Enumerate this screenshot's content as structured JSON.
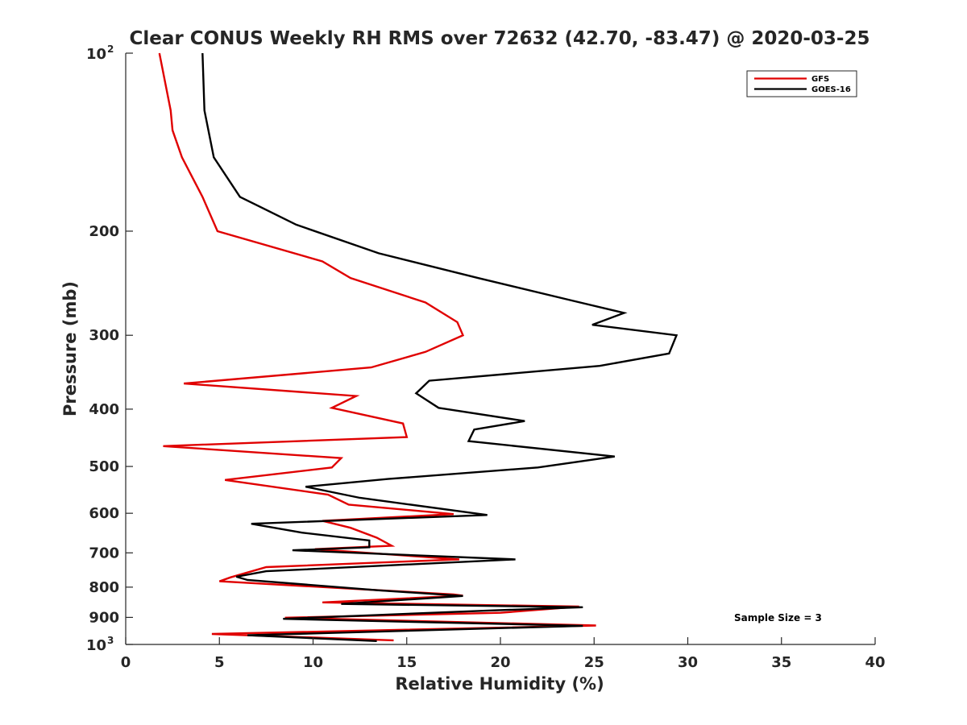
{
  "chart_data": {
    "type": "line",
    "title": "Clear CONUS Weekly RH RMS over 72632 (42.70, -83.47) @ 2020-03-25",
    "xlabel": "Relative Humidity (%)",
    "ylabel": "Pressure (mb)",
    "xlim": [
      0,
      40
    ],
    "ylim": [
      100,
      1000
    ],
    "y_scale": "log",
    "y_reversed": true,
    "x_ticks": [
      0,
      5,
      10,
      15,
      20,
      25,
      30,
      35,
      40
    ],
    "x_tick_labels": [
      "0",
      "5",
      "10",
      "15",
      "20",
      "25",
      "30",
      "35",
      "40"
    ],
    "y_ticks": [
      200,
      300,
      400,
      500,
      600,
      700,
      800,
      900
    ],
    "y_tick_labels": [
      "200",
      "300",
      "400",
      "500",
      "600",
      "700",
      "800",
      "900"
    ],
    "y_end_labels": [
      {
        "value": 100,
        "base": "10",
        "exp": "2"
      },
      {
        "value": 1000,
        "base": "10",
        "exp": "3"
      }
    ],
    "grid": false,
    "legend_position": "top-right",
    "annotation": "Sample Size = 3",
    "series": [
      {
        "name": "GFS",
        "color": "#e00000",
        "points": [
          [
            1.8,
            100
          ],
          [
            2.4,
            125
          ],
          [
            2.5,
            135
          ],
          [
            3.0,
            150
          ],
          [
            4.1,
            175
          ],
          [
            4.9,
            200
          ],
          [
            10.5,
            225
          ],
          [
            12.0,
            240
          ],
          [
            16.0,
            264
          ],
          [
            17.7,
            285
          ],
          [
            18.0,
            300
          ],
          [
            16.0,
            320
          ],
          [
            13.1,
            340
          ],
          [
            3.1,
            362
          ],
          [
            12.3,
            380
          ],
          [
            11.0,
            398
          ],
          [
            14.8,
            423
          ],
          [
            15.0,
            446
          ],
          [
            2.0,
            462
          ],
          [
            11.5,
            484
          ],
          [
            11.0,
            502
          ],
          [
            5.3,
            527
          ],
          [
            10.8,
            558
          ],
          [
            11.9,
            580
          ],
          [
            17.5,
            602
          ],
          [
            10.5,
            618
          ],
          [
            12.0,
            635
          ],
          [
            13.4,
            660
          ],
          [
            14.2,
            681
          ],
          [
            10.1,
            690
          ],
          [
            17.8,
            718
          ],
          [
            7.5,
            740
          ],
          [
            5.6,
            770
          ],
          [
            5.0,
            782
          ],
          [
            17.5,
            823
          ],
          [
            18.0,
            827
          ],
          [
            10.5,
            849
          ],
          [
            24.2,
            863
          ],
          [
            20.0,
            884
          ],
          [
            8.5,
            901
          ],
          [
            25.1,
            929
          ],
          [
            4.6,
            960
          ],
          [
            14.3,
            984
          ]
        ]
      },
      {
        "name": "GOES-16",
        "color": "#000000",
        "points": [
          [
            4.1,
            100
          ],
          [
            4.2,
            125
          ],
          [
            4.7,
            150
          ],
          [
            6.1,
            175
          ],
          [
            9.1,
            195
          ],
          [
            13.5,
            218
          ],
          [
            18.8,
            240
          ],
          [
            23.8,
            262
          ],
          [
            26.6,
            275
          ],
          [
            24.9,
            288
          ],
          [
            29.4,
            300
          ],
          [
            29.0,
            322
          ],
          [
            25.3,
            338
          ],
          [
            16.2,
            358
          ],
          [
            15.5,
            376
          ],
          [
            16.7,
            398
          ],
          [
            21.3,
            419
          ],
          [
            18.6,
            433
          ],
          [
            18.3,
            453
          ],
          [
            26.1,
            481
          ],
          [
            22.0,
            502
          ],
          [
            14.0,
            525
          ],
          [
            9.6,
            541
          ],
          [
            12.5,
            565
          ],
          [
            19.3,
            604
          ],
          [
            6.7,
            625
          ],
          [
            9.4,
            647
          ],
          [
            13.0,
            667
          ],
          [
            13.0,
            685
          ],
          [
            8.9,
            693
          ],
          [
            20.8,
            718
          ],
          [
            7.5,
            752
          ],
          [
            5.9,
            768
          ],
          [
            6.5,
            778
          ],
          [
            13.5,
            810
          ],
          [
            18.0,
            828
          ],
          [
            11.5,
            854
          ],
          [
            24.4,
            865
          ],
          [
            19.5,
            876
          ],
          [
            8.4,
            905
          ],
          [
            24.4,
            930
          ],
          [
            6.5,
            965
          ],
          [
            13.4,
            987
          ]
        ]
      }
    ]
  }
}
